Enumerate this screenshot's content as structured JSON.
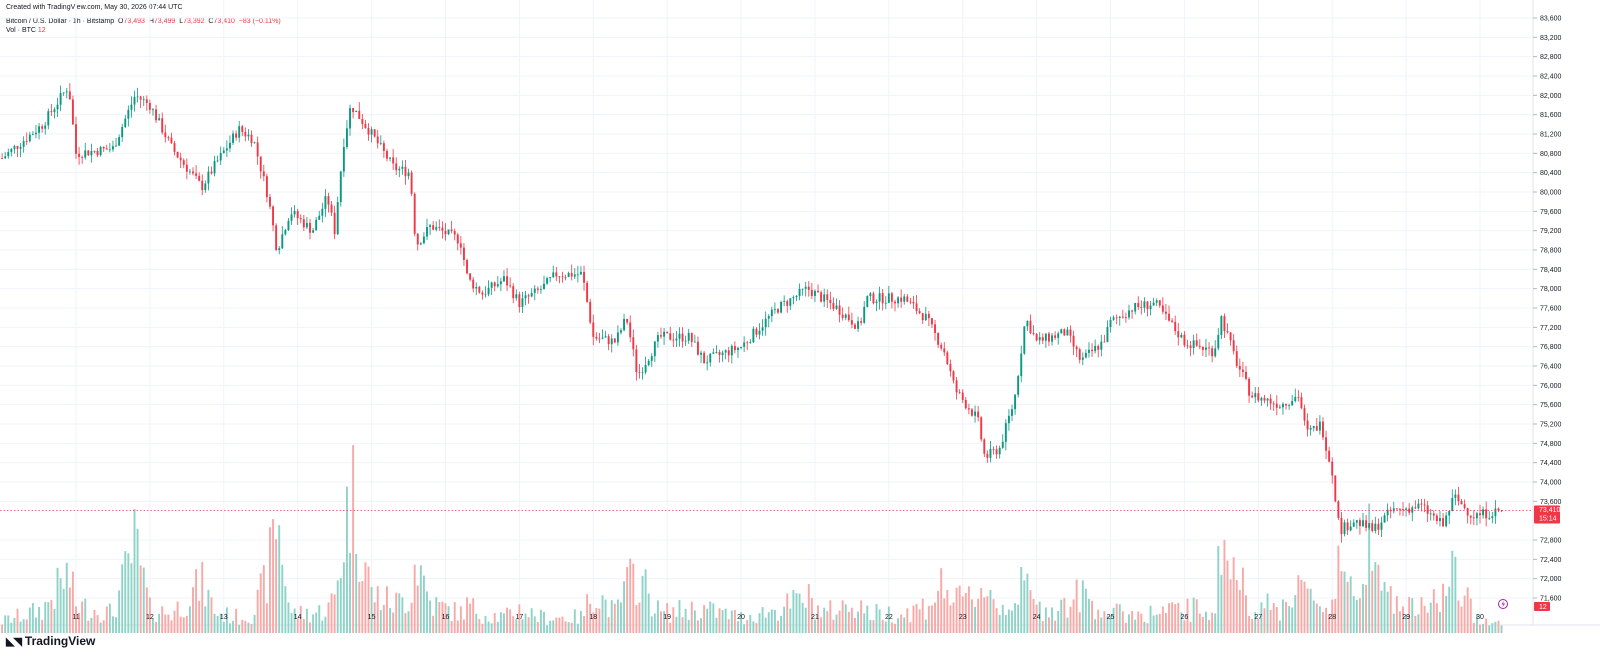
{
  "header": {
    "created": "Created with TradingView.com, May 30, 2026 07:44 UTC",
    "symbol": "Bitcoin / U.S. Dollar · 1h · Bitstamp",
    "ohlc": {
      "o_label": "O",
      "o": "73,493",
      "h_label": "H",
      "h": "73,499",
      "l_label": "L",
      "l": "73,392",
      "c_label": "C",
      "c": "73,410",
      "change": "−83 (−0.11%)"
    },
    "vol_label": "Vol · BTC",
    "vol_value": "12"
  },
  "brand": {
    "logo_text": "TradingView"
  },
  "colors": {
    "up": "#089981",
    "down": "#f23645",
    "up_vol": "#8fd3c8",
    "down_vol": "#f7a9a7",
    "grid": "#f0f3fa",
    "price_line": "#f23645"
  },
  "chart_data": {
    "type": "candlestick",
    "y_ticks": [
      "83,600",
      "83,200",
      "82,800",
      "82,400",
      "82,000",
      "81,600",
      "81,200",
      "80,800",
      "80,400",
      "80,000",
      "79,600",
      "79,200",
      "78,800",
      "78,400",
      "78,000",
      "77,600",
      "77,200",
      "76,800",
      "76,400",
      "76,000",
      "75,600",
      "75,200",
      "74,800",
      "74,400",
      "74,000",
      "73,600",
      "72,800",
      "72,400",
      "72,000",
      "71,600"
    ],
    "x_ticks": [
      "11",
      "12",
      "13",
      "14",
      "15",
      "16",
      "17",
      "18",
      "19",
      "20",
      "21",
      "22",
      "23",
      "24",
      "25",
      "26",
      "27",
      "28",
      "29",
      "30"
    ],
    "ylim": [
      71600,
      83600
    ],
    "last_price_label": "73,410",
    "countdown_label": "15:14",
    "last_volume_label": "12",
    "anchors": [
      {
        "day": 10.0,
        "price": 80700,
        "vol": 6
      },
      {
        "day": 10.55,
        "price": 81400,
        "vol": 12
      },
      {
        "day": 10.9,
        "price": 82200,
        "vol": 30
      },
      {
        "day": 11.0,
        "price": 80800,
        "vol": 14
      },
      {
        "day": 11.5,
        "price": 80900,
        "vol": 10
      },
      {
        "day": 11.8,
        "price": 82000,
        "vol": 45
      },
      {
        "day": 12.0,
        "price": 81800,
        "vol": 12
      },
      {
        "day": 12.3,
        "price": 80900,
        "vol": 10
      },
      {
        "day": 12.7,
        "price": 80100,
        "vol": 25
      },
      {
        "day": 12.9,
        "price": 80600,
        "vol": 10
      },
      {
        "day": 13.2,
        "price": 81300,
        "vol": 8
      },
      {
        "day": 13.4,
        "price": 81100,
        "vol": 10
      },
      {
        "day": 13.6,
        "price": 79900,
        "vol": 30
      },
      {
        "day": 13.72,
        "price": 78800,
        "vol": 62
      },
      {
        "day": 13.9,
        "price": 79600,
        "vol": 10
      },
      {
        "day": 14.2,
        "price": 79200,
        "vol": 10
      },
      {
        "day": 14.4,
        "price": 79900,
        "vol": 12
      },
      {
        "day": 14.5,
        "price": 79200,
        "vol": 18
      },
      {
        "day": 14.62,
        "price": 81000,
        "vol": 48
      },
      {
        "day": 14.72,
        "price": 81800,
        "vol": 75
      },
      {
        "day": 15.0,
        "price": 81200,
        "vol": 20
      },
      {
        "day": 15.3,
        "price": 80500,
        "vol": 15
      },
      {
        "day": 15.52,
        "price": 80400,
        "vol": 18
      },
      {
        "day": 15.6,
        "price": 78900,
        "vol": 40
      },
      {
        "day": 15.8,
        "price": 79300,
        "vol": 15
      },
      {
        "day": 16.2,
        "price": 79000,
        "vol": 10
      },
      {
        "day": 16.3,
        "price": 78200,
        "vol": 14
      },
      {
        "day": 16.5,
        "price": 77900,
        "vol": 10
      },
      {
        "day": 16.8,
        "price": 78200,
        "vol": 8
      },
      {
        "day": 17.0,
        "price": 77700,
        "vol": 12
      },
      {
        "day": 17.3,
        "price": 78000,
        "vol": 8
      },
      {
        "day": 17.5,
        "price": 78300,
        "vol": 8
      },
      {
        "day": 17.85,
        "price": 78300,
        "vol": 8
      },
      {
        "day": 18.0,
        "price": 77000,
        "vol": 22
      },
      {
        "day": 18.3,
        "price": 76900,
        "vol": 10
      },
      {
        "day": 18.45,
        "price": 77400,
        "vol": 24
      },
      {
        "day": 18.6,
        "price": 76200,
        "vol": 30
      },
      {
        "day": 18.9,
        "price": 77000,
        "vol": 10
      },
      {
        "day": 19.3,
        "price": 77000,
        "vol": 12
      },
      {
        "day": 19.5,
        "price": 76500,
        "vol": 12
      },
      {
        "day": 20.0,
        "price": 76800,
        "vol": 8
      },
      {
        "day": 20.5,
        "price": 77600,
        "vol": 12
      },
      {
        "day": 20.9,
        "price": 78000,
        "vol": 18
      },
      {
        "day": 21.1,
        "price": 77800,
        "vol": 10
      },
      {
        "day": 21.3,
        "price": 77600,
        "vol": 12
      },
      {
        "day": 21.6,
        "price": 77200,
        "vol": 16
      },
      {
        "day": 21.7,
        "price": 77800,
        "vol": 10
      },
      {
        "day": 22.2,
        "price": 77800,
        "vol": 10
      },
      {
        "day": 22.5,
        "price": 77400,
        "vol": 14
      },
      {
        "day": 22.75,
        "price": 76700,
        "vol": 25
      },
      {
        "day": 22.9,
        "price": 75900,
        "vol": 15
      },
      {
        "day": 23.2,
        "price": 75300,
        "vol": 20
      },
      {
        "day": 23.3,
        "price": 74500,
        "vol": 25
      },
      {
        "day": 23.5,
        "price": 74700,
        "vol": 12
      },
      {
        "day": 23.7,
        "price": 75700,
        "vol": 18
      },
      {
        "day": 23.85,
        "price": 77400,
        "vol": 25
      },
      {
        "day": 24.0,
        "price": 76900,
        "vol": 12
      },
      {
        "day": 24.4,
        "price": 77100,
        "vol": 14
      },
      {
        "day": 24.6,
        "price": 76500,
        "vol": 20
      },
      {
        "day": 24.9,
        "price": 76900,
        "vol": 12
      },
      {
        "day": 25.0,
        "price": 77300,
        "vol": 10
      },
      {
        "day": 25.3,
        "price": 77600,
        "vol": 10
      },
      {
        "day": 25.6,
        "price": 77700,
        "vol": 10
      },
      {
        "day": 26.0,
        "price": 76900,
        "vol": 12
      },
      {
        "day": 26.4,
        "price": 76700,
        "vol": 12
      },
      {
        "day": 26.5,
        "price": 77400,
        "vol": 45
      },
      {
        "day": 26.7,
        "price": 76500,
        "vol": 30
      },
      {
        "day": 26.9,
        "price": 75800,
        "vol": 15
      },
      {
        "day": 27.3,
        "price": 75600,
        "vol": 12
      },
      {
        "day": 27.55,
        "price": 75800,
        "vol": 28
      },
      {
        "day": 27.65,
        "price": 75000,
        "vol": 18
      },
      {
        "day": 27.85,
        "price": 75200,
        "vol": 14
      },
      {
        "day": 28.0,
        "price": 74200,
        "vol": 15
      },
      {
        "day": 28.1,
        "price": 73000,
        "vol": 45
      },
      {
        "day": 28.3,
        "price": 73200,
        "vol": 12
      },
      {
        "day": 28.55,
        "price": 73000,
        "vol": 65
      },
      {
        "day": 28.8,
        "price": 73400,
        "vol": 15
      },
      {
        "day": 29.2,
        "price": 73500,
        "vol": 12
      },
      {
        "day": 29.5,
        "price": 73100,
        "vol": 20
      },
      {
        "day": 29.65,
        "price": 73700,
        "vol": 30
      },
      {
        "day": 29.9,
        "price": 73300,
        "vol": 10
      },
      {
        "day": 30.3,
        "price": 73410,
        "vol": 4
      }
    ]
  }
}
